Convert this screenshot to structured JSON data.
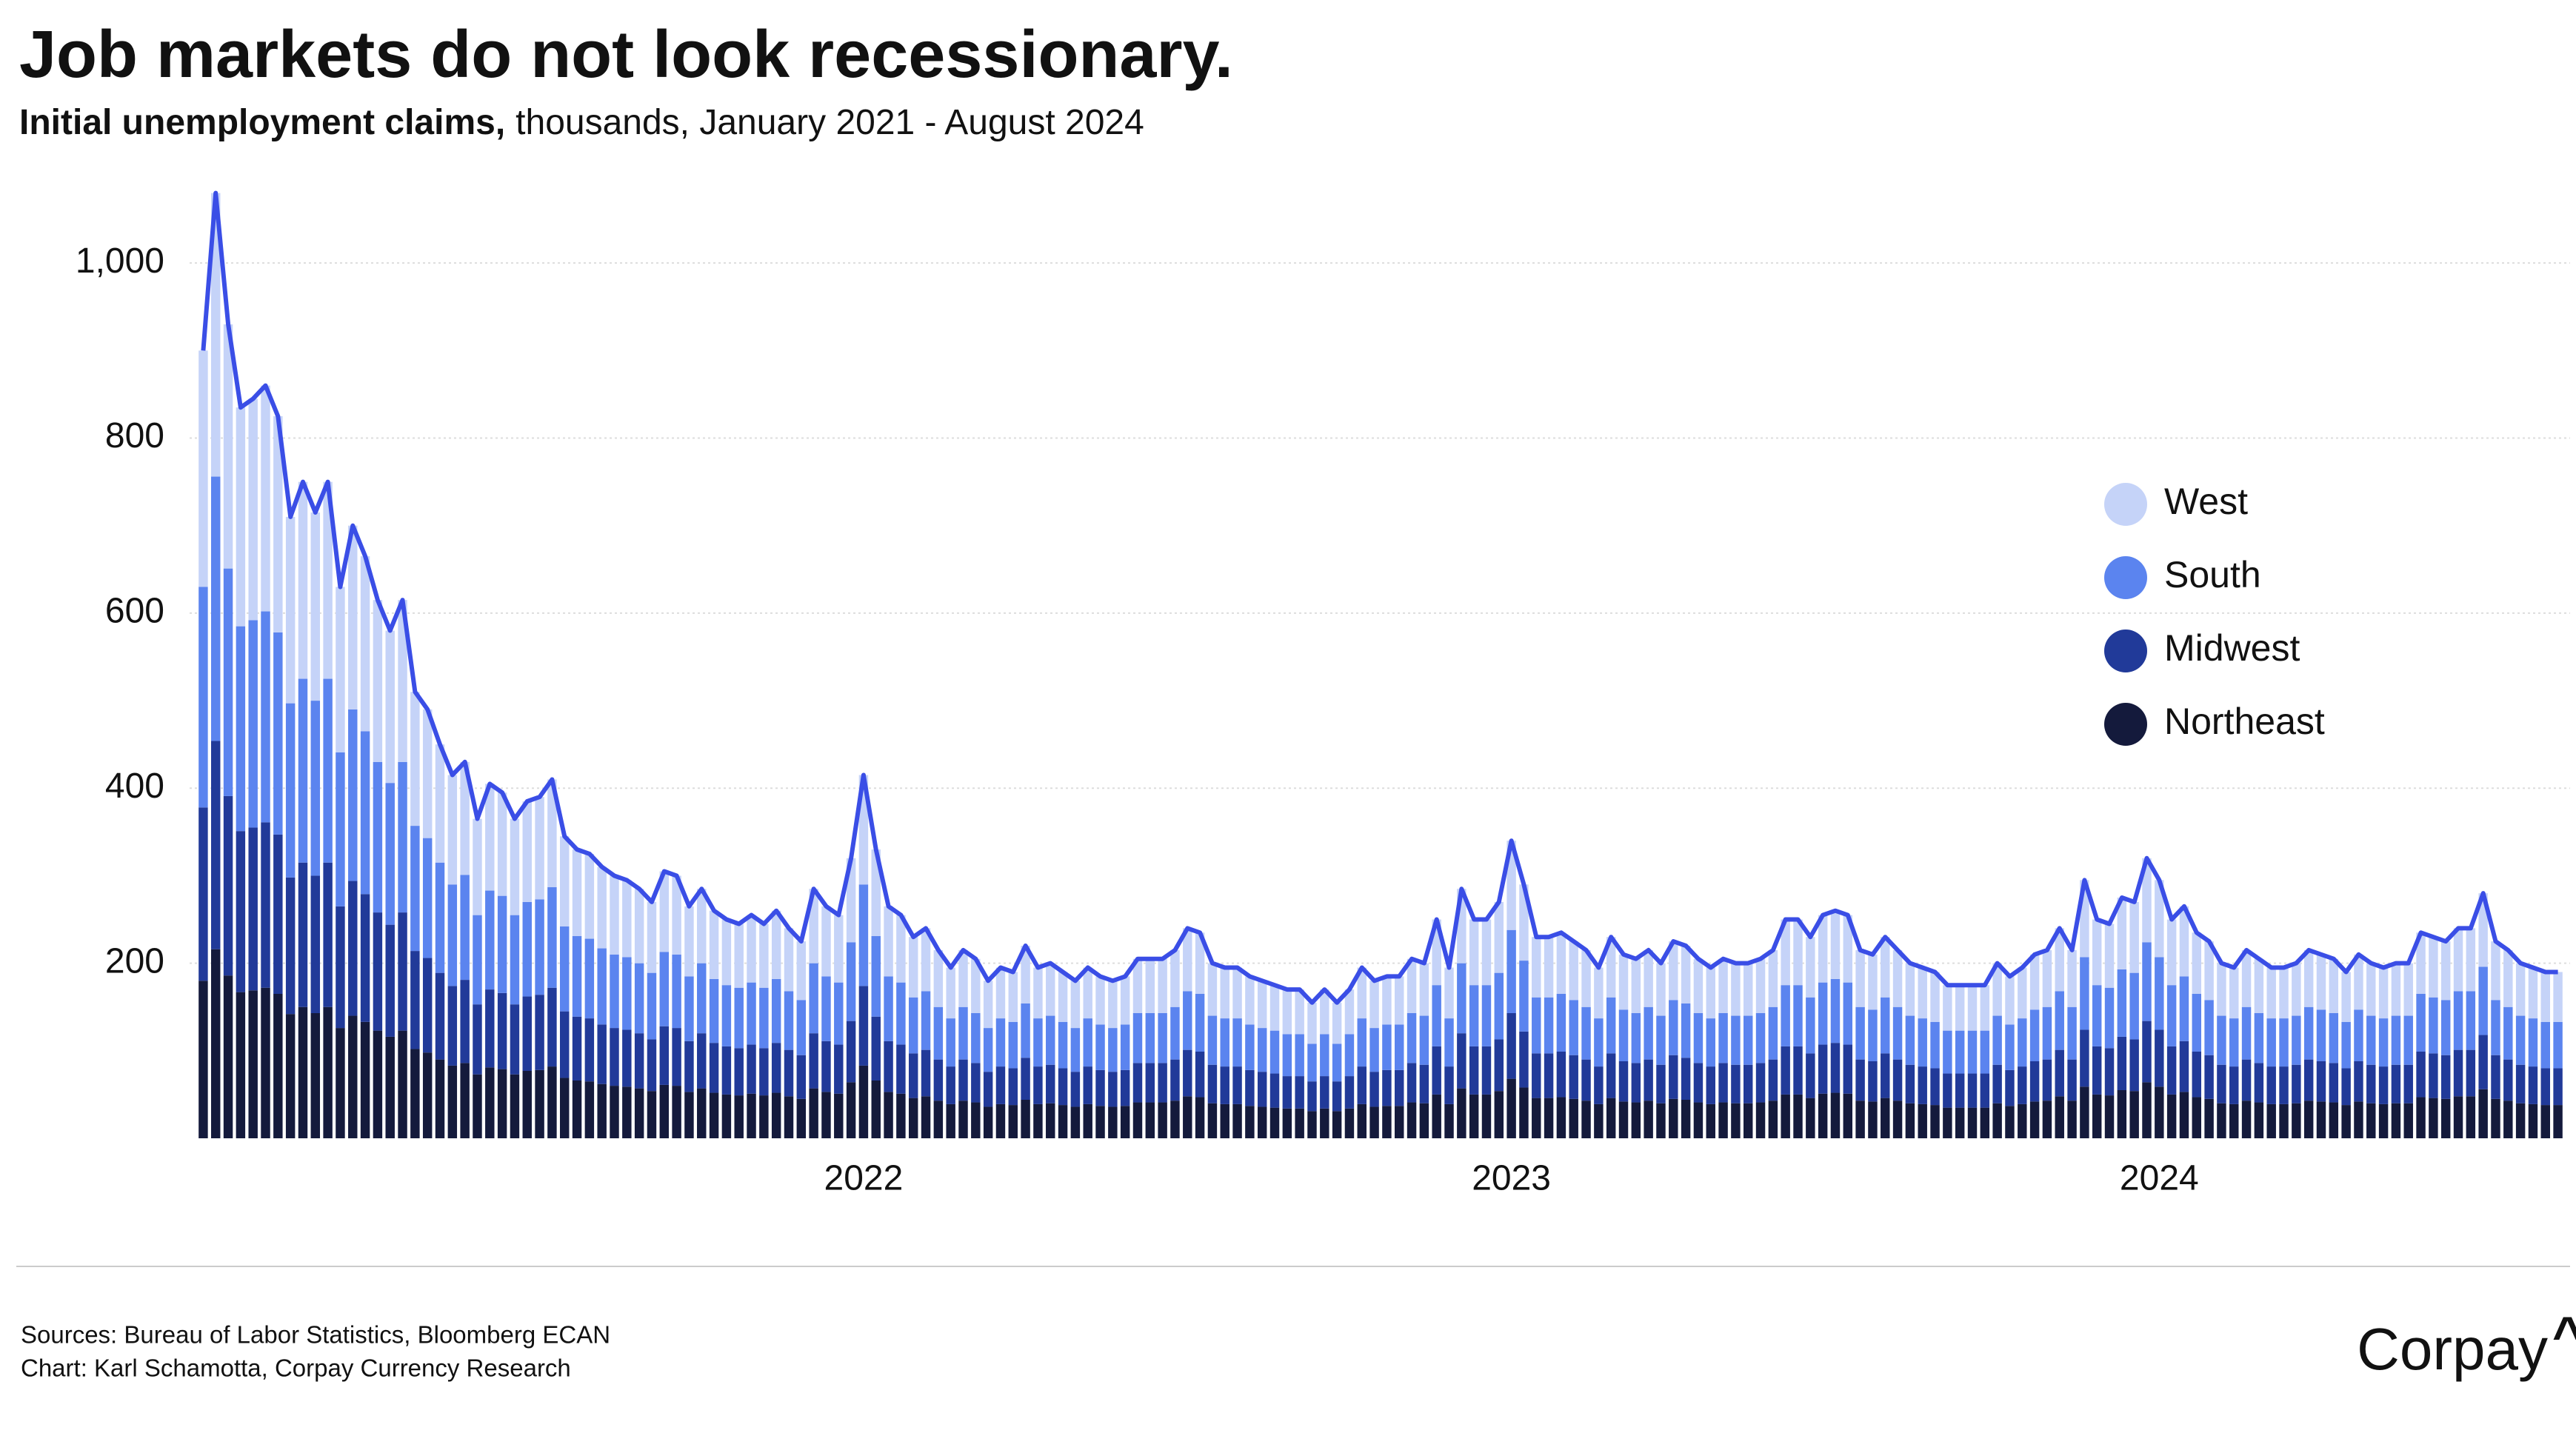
{
  "chart_data": {
    "type": "stacked_bar",
    "title": "Job markets do not look recessionary.",
    "subtitle_lead": "Initial unemployment claims,",
    "subtitle_rest": "thousands, January 2021 - August 2024",
    "categories": [
      null,
      null,
      null,
      null,
      null,
      null,
      null,
      null,
      null,
      null,
      null,
      null,
      null,
      null,
      null,
      null,
      null,
      null,
      null,
      null,
      null,
      null,
      null,
      null,
      null,
      null,
      null,
      null,
      null,
      null,
      null,
      null,
      null,
      null,
      null,
      null,
      null,
      null,
      null,
      null,
      null,
      null,
      null,
      null,
      null,
      null,
      null,
      null,
      null,
      null,
      null,
      null,
      null,
      "2022",
      null,
      null,
      null,
      null,
      null,
      null,
      null,
      null,
      null,
      null,
      null,
      null,
      null,
      null,
      null,
      null,
      null,
      null,
      null,
      null,
      null,
      null,
      null,
      null,
      null,
      null,
      null,
      null,
      null,
      null,
      null,
      null,
      null,
      null,
      null,
      null,
      null,
      null,
      null,
      null,
      null,
      null,
      null,
      null,
      null,
      null,
      null,
      null,
      null,
      null,
      null,
      "2023",
      null,
      null,
      null,
      null,
      null,
      null,
      null,
      null,
      null,
      null,
      null,
      null,
      null,
      null,
      null,
      null,
      null,
      null,
      null,
      null,
      null,
      null,
      null,
      null,
      null,
      null,
      null,
      null,
      null,
      null,
      null,
      null,
      null,
      null,
      null,
      null,
      null,
      null,
      null,
      null,
      null,
      null,
      null,
      null,
      null,
      null,
      null,
      null,
      null,
      null,
      null,
      "2024",
      null,
      null,
      null,
      null,
      null,
      null,
      null,
      null,
      null,
      null,
      null,
      null,
      null,
      null,
      null,
      null,
      null,
      null,
      null,
      null,
      null,
      null,
      null,
      null,
      null,
      null,
      null,
      null,
      null,
      null,
      null,
      null
    ],
    "series": [
      {
        "name": "Northeast",
        "color": "#141a3c",
        "values": [
          180,
          216,
          186,
          167,
          169,
          172,
          165,
          142,
          150,
          143,
          150,
          126,
          140,
          133,
          123,
          116,
          123,
          102,
          98,
          90,
          83,
          86,
          73,
          81,
          79,
          73,
          77,
          78,
          82,
          69,
          66,
          65,
          62,
          60,
          59,
          57,
          54,
          61,
          60,
          53,
          57,
          52,
          50,
          49,
          51,
          49,
          52,
          48,
          45,
          57,
          53,
          51,
          64,
          83,
          66,
          53,
          51,
          46,
          48,
          43,
          39,
          43,
          41,
          36,
          39,
          38,
          44,
          39,
          40,
          38,
          36,
          39,
          37,
          36,
          37,
          41,
          41,
          41,
          43,
          48,
          47,
          40,
          39,
          39,
          37,
          36,
          35,
          34,
          34,
          31,
          34,
          31,
          34,
          39,
          36,
          37,
          37,
          41,
          40,
          50,
          39,
          57,
          50,
          50,
          54,
          68,
          58,
          46,
          46,
          47,
          45,
          43,
          39,
          46,
          42,
          41,
          43,
          40,
          45,
          44,
          41,
          39,
          41,
          40,
          40,
          41,
          43,
          50,
          50,
          46,
          51,
          52,
          51,
          43,
          42,
          46,
          43,
          40,
          39,
          38,
          35,
          35,
          35,
          35,
          40,
          37,
          39,
          42,
          43,
          48,
          43,
          59,
          50,
          49,
          55,
          54,
          64,
          59,
          50,
          53,
          47,
          45,
          40,
          39,
          43,
          41,
          39,
          39,
          40,
          43,
          42,
          41,
          38,
          42,
          40,
          39,
          40,
          40,
          47,
          46,
          45,
          48,
          48,
          56,
          45,
          43,
          40,
          39,
          38,
          38
        ]
      },
      {
        "name": "Midwest",
        "color": "#213a99",
        "values": [
          198,
          238,
          205,
          184,
          186,
          189,
          182,
          156,
          165,
          157,
          165,
          139,
          154,
          146,
          135,
          128,
          135,
          112,
          108,
          99,
          91,
          95,
          80,
          89,
          87,
          80,
          85,
          86,
          90,
          76,
          73,
          72,
          68,
          66,
          65,
          63,
          59,
          67,
          66,
          58,
          63,
          57,
          55,
          54,
          56,
          54,
          57,
          53,
          50,
          63,
          58,
          56,
          70,
          91,
          73,
          58,
          56,
          51,
          53,
          47,
          43,
          47,
          45,
          40,
          43,
          42,
          48,
          43,
          44,
          42,
          40,
          43,
          41,
          40,
          41,
          45,
          45,
          45,
          47,
          53,
          52,
          44,
          43,
          43,
          41,
          40,
          39,
          37,
          37,
          34,
          37,
          34,
          37,
          43,
          40,
          41,
          41,
          45,
          44,
          55,
          43,
          63,
          55,
          55,
          59,
          75,
          64,
          51,
          51,
          52,
          50,
          47,
          43,
          51,
          46,
          45,
          47,
          44,
          50,
          48,
          45,
          43,
          45,
          44,
          44,
          45,
          47,
          55,
          55,
          51,
          56,
          57,
          56,
          47,
          46,
          51,
          47,
          44,
          43,
          42,
          39,
          39,
          39,
          39,
          44,
          41,
          43,
          46,
          47,
          53,
          47,
          65,
          55,
          54,
          61,
          59,
          70,
          65,
          55,
          58,
          52,
          50,
          44,
          43,
          47,
          45,
          43,
          43,
          44,
          47,
          46,
          45,
          42,
          46,
          44,
          43,
          44,
          44,
          52,
          51,
          50,
          53,
          53,
          62,
          50,
          47,
          44,
          43,
          42,
          42
        ]
      },
      {
        "name": "South",
        "color": "#5b84ef",
        "values": [
          252,
          302,
          260,
          234,
          237,
          241,
          231,
          199,
          210,
          200,
          210,
          176,
          196,
          186,
          172,
          162,
          172,
          143,
          137,
          126,
          116,
          120,
          102,
          113,
          111,
          102,
          108,
          109,
          115,
          97,
          92,
          91,
          87,
          84,
          83,
          80,
          76,
          85,
          84,
          74,
          80,
          73,
          70,
          69,
          71,
          69,
          73,
          67,
          63,
          80,
          74,
          71,
          90,
          116,
          92,
          74,
          71,
          64,
          67,
          60,
          55,
          60,
          57,
          50,
          55,
          53,
          62,
          55,
          56,
          53,
          50,
          55,
          52,
          50,
          52,
          57,
          57,
          57,
          60,
          67,
          66,
          56,
          55,
          55,
          52,
          50,
          49,
          48,
          48,
          43,
          48,
          43,
          48,
          55,
          50,
          52,
          52,
          57,
          56,
          70,
          55,
          80,
          70,
          70,
          76,
          95,
          81,
          64,
          64,
          66,
          63,
          60,
          55,
          64,
          59,
          57,
          60,
          56,
          63,
          62,
          57,
          55,
          57,
          56,
          56,
          57,
          60,
          70,
          70,
          64,
          71,
          73,
          71,
          60,
          59,
          64,
          60,
          56,
          55,
          53,
          49,
          49,
          49,
          49,
          56,
          52,
          55,
          59,
          60,
          67,
          60,
          83,
          70,
          69,
          77,
          76,
          90,
          83,
          70,
          74,
          66,
          63,
          56,
          55,
          60,
          57,
          55,
          55,
          56,
          60,
          59,
          57,
          53,
          59,
          56,
          55,
          56,
          56,
          66,
          64,
          63,
          67,
          67,
          78,
          63,
          60,
          56,
          55,
          53,
          53
        ]
      },
      {
        "name": "West",
        "color": "#c5d3f8",
        "values": [
          270,
          324,
          279,
          250,
          253,
          258,
          247,
          213,
          225,
          215,
          225,
          189,
          210,
          200,
          185,
          174,
          185,
          153,
          147,
          135,
          125,
          129,
          110,
          122,
          118,
          110,
          115,
          117,
          123,
          103,
          99,
          97,
          93,
          90,
          88,
          85,
          81,
          92,
          90,
          80,
          85,
          78,
          75,
          73,
          77,
          73,
          78,
          72,
          67,
          85,
          80,
          77,
          96,
          125,
          99,
          80,
          77,
          69,
          72,
          65,
          58,
          65,
          62,
          54,
          58,
          57,
          66,
          58,
          60,
          57,
          54,
          58,
          55,
          54,
          55,
          62,
          62,
          62,
          65,
          72,
          70,
          60,
          58,
          58,
          55,
          54,
          52,
          51,
          51,
          47,
          51,
          47,
          51,
          58,
          54,
          55,
          55,
          62,
          60,
          75,
          58,
          85,
          75,
          75,
          81,
          102,
          87,
          69,
          69,
          70,
          67,
          65,
          58,
          69,
          63,
          62,
          65,
          60,
          67,
          66,
          62,
          58,
          62,
          60,
          60,
          62,
          65,
          75,
          75,
          69,
          77,
          78,
          77,
          65,
          63,
          69,
          65,
          60,
          58,
          57,
          52,
          52,
          52,
          52,
          60,
          55,
          58,
          63,
          65,
          72,
          65,
          88,
          75,
          73,
          82,
          81,
          96,
          88,
          75,
          80,
          70,
          67,
          60,
          58,
          65,
          62,
          58,
          58,
          60,
          65,
          63,
          62,
          57,
          63,
          60,
          58,
          60,
          60,
          70,
          69,
          67,
          72,
          72,
          84,
          67,
          65,
          60,
          58,
          57,
          57
        ]
      }
    ],
    "line_color": "#3a4ee6",
    "ylim": [
      0,
      1100
    ],
    "yticks": [
      200,
      400,
      600,
      800,
      {
        "value": 1000,
        "label": "1,000"
      }
    ],
    "grid": true,
    "legend": "right",
    "sources": "Sources: Bureau of Labor Statistics, Bloomberg ECAN",
    "credit": "Chart: Karl Schamotta, Corpay Currency Research",
    "logo": "Corpay",
    "logo_mark": "^"
  }
}
